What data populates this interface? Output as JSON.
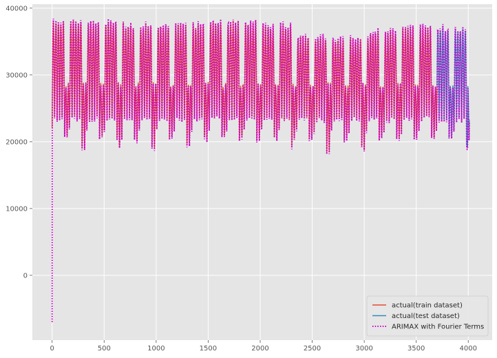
{
  "chart_data": {
    "type": "line",
    "title": "",
    "xlabel": "",
    "ylabel": "",
    "xlim": [
      -190,
      4230
    ],
    "ylim": [
      -9700,
      40600
    ],
    "xticks": [
      0,
      500,
      1000,
      1500,
      2000,
      2500,
      3000,
      3500,
      4000
    ],
    "yticks": [
      0,
      10000,
      20000,
      30000,
      40000
    ],
    "xtick_labels": [
      "0",
      "500",
      "1000",
      "1500",
      "2000",
      "2500",
      "3000",
      "3500",
      "4000"
    ],
    "ytick_labels": [
      "0",
      "10000",
      "20000",
      "30000",
      "40000"
    ],
    "grid": true,
    "legend_position": "lower right",
    "background": "#E5E5E5",
    "series": [
      {
        "name": "actual(train dataset)",
        "style": "solid",
        "color": "#E24A33",
        "x_range": [
          0,
          3700
        ],
        "points_per_day": 24,
        "weekly_pattern": "5 weekday peaks then 2 lower weekend days",
        "weekday_peak": 37000,
        "weekday_trough": 23500,
        "weekend_peak": 28500,
        "weekend_trough": 20500,
        "weekday_peak_by_segment": [
          {
            "x": [
              0,
              700
            ],
            "value": 37800
          },
          {
            "x": [
              700,
              1400
            ],
            "value": 37300
          },
          {
            "x": [
              1400,
              2000
            ],
            "value": 37800
          },
          {
            "x": [
              2000,
              2350
            ],
            "value": 37200
          },
          {
            "x": [
              2350,
              2650
            ],
            "value": 35500
          },
          {
            "x": [
              2650,
              3050
            ],
            "value": 35200
          },
          {
            "x": [
              3050,
              3350
            ],
            "value": 36300
          },
          {
            "x": [
              3350,
              3700
            ],
            "value": 37000
          }
        ],
        "low_weekends": [
          {
            "x": 300,
            "value": 19200
          },
          {
            "x": 665,
            "value": 19000
          },
          {
            "x": 970,
            "value": 19200
          },
          {
            "x": 1300,
            "value": 19500
          },
          {
            "x": 2300,
            "value": 19000
          },
          {
            "x": 2660,
            "value": 18700
          },
          {
            "x": 2990,
            "value": 19000
          }
        ],
        "start_value": 22000
      },
      {
        "name": "actual(test dataset)",
        "style": "solid",
        "color": "#348ABD",
        "x_range": [
          3700,
          4010
        ],
        "weekday_peak": 36800,
        "weekday_trough": 23300,
        "min_value": 19000,
        "end_value": 23300
      },
      {
        "name": "ARIMAX with Fourier Terms",
        "style": "dotted",
        "color": "#CC00CC",
        "x_range": [
          0,
          4010
        ],
        "start_value": -7000,
        "rises_to": 22000,
        "note": "fitted values closely track actual series; overshoot peaks about +600"
      }
    ]
  }
}
